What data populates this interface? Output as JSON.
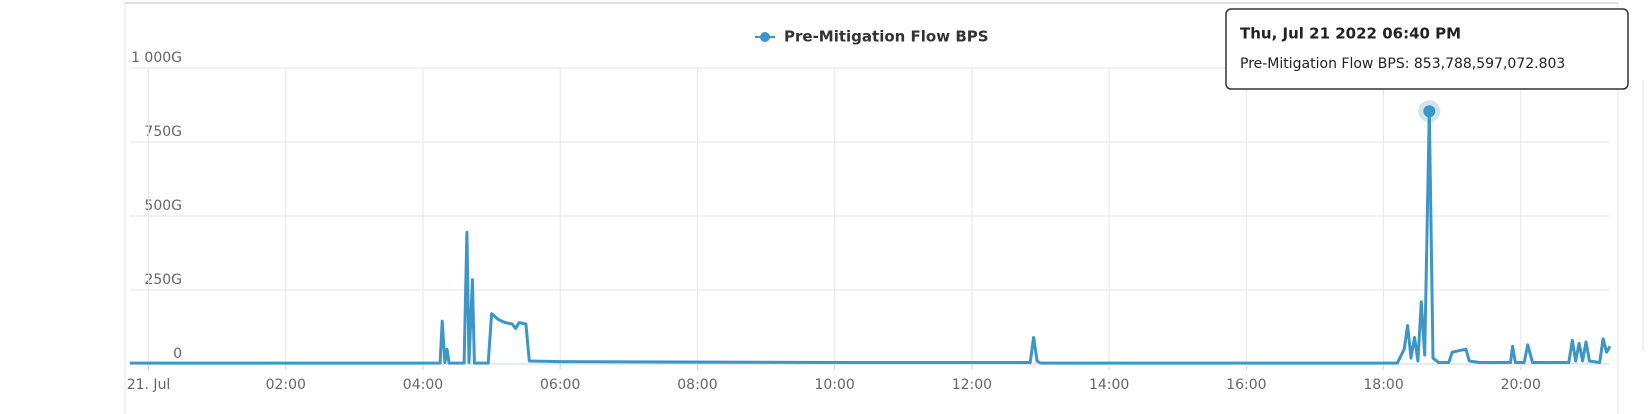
{
  "chart_data": {
    "type": "line",
    "x": [
      -0.27,
      4.25,
      4.28,
      4.32,
      4.35,
      4.38,
      4.6,
      4.64,
      4.67,
      4.72,
      4.75,
      4.95,
      5.0,
      5.1,
      5.2,
      5.3,
      5.35,
      5.4,
      5.5,
      5.55,
      6,
      10,
      12.85,
      12.9,
      12.95,
      13,
      18.2,
      18.3,
      18.35,
      18.4,
      18.45,
      18.5,
      18.55,
      18.6,
      18.667,
      18.72,
      18.8,
      18.95,
      19.0,
      19.1,
      19.2,
      19.25,
      19.4,
      19.85,
      19.88,
      19.92,
      20.05,
      20.1,
      20.17,
      20.7,
      20.75,
      20.8,
      20.85,
      20.9,
      20.95,
      21.0,
      21.15,
      21.2,
      21.25,
      21.3
    ],
    "series": [
      {
        "name": "Pre-Mitigation Flow BPS",
        "color": "#3d96c8",
        "values": [
          3,
          3,
          145,
          5,
          50,
          3,
          3,
          445,
          5,
          285,
          3,
          3,
          170,
          150,
          140,
          135,
          120,
          140,
          135,
          10,
          8,
          5,
          5,
          90,
          10,
          3,
          3,
          50,
          130,
          20,
          90,
          10,
          210,
          30,
          853.788597072803,
          20,
          5,
          5,
          40,
          45,
          50,
          10,
          5,
          5,
          60,
          5,
          5,
          65,
          5,
          5,
          80,
          10,
          70,
          10,
          75,
          10,
          5,
          85,
          40,
          60
        ]
      }
    ],
    "xlim": [
      -0.27,
      21.3
    ],
    "xticks": [
      {
        "value": 0,
        "label": "21. Jul"
      },
      {
        "value": 2,
        "label": "02:00"
      },
      {
        "value": 4,
        "label": "04:00"
      },
      {
        "value": 6,
        "label": "06:00"
      },
      {
        "value": 8,
        "label": "08:00"
      },
      {
        "value": 10,
        "label": "10:00"
      },
      {
        "value": 12,
        "label": "12:00"
      },
      {
        "value": 14,
        "label": "14:00"
      },
      {
        "value": 16,
        "label": "16:00"
      },
      {
        "value": 18,
        "label": "18:00"
      },
      {
        "value": 20,
        "label": "20:00"
      }
    ],
    "ylim": [
      0,
      1000
    ],
    "yticks": [
      0,
      {
        "value": 250,
        "label": "250G"
      },
      {
        "value": 500,
        "label": "500G"
      },
      {
        "value": 750,
        "label": "750G"
      },
      {
        "value": 1000,
        "label": "1 000G"
      }
    ],
    "grid": true,
    "legend": "top",
    "tooltip": {
      "title": "Thu, Jul 21 2022 06:40 PM",
      "text": "Pre-Mitigation Flow BPS: 853,788,597,072.803"
    }
  }
}
